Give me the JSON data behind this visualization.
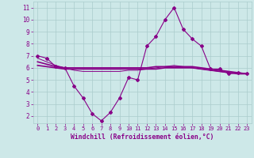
{
  "x": [
    0,
    1,
    2,
    3,
    4,
    5,
    6,
    7,
    8,
    9,
    10,
    11,
    12,
    13,
    14,
    15,
    16,
    17,
    18,
    19,
    20,
    21,
    22,
    23
  ],
  "line1": [
    7.0,
    6.8,
    6.1,
    6.0,
    4.5,
    3.5,
    2.2,
    1.6,
    2.3,
    3.5,
    5.2,
    5.0,
    7.8,
    8.6,
    10.0,
    11.0,
    9.2,
    8.4,
    7.8,
    5.9,
    5.9,
    5.5,
    5.6,
    5.5
  ],
  "line2": [
    6.5,
    6.3,
    6.1,
    6.0,
    6.0,
    6.0,
    6.0,
    6.0,
    6.0,
    6.0,
    6.0,
    6.0,
    6.0,
    6.1,
    6.1,
    6.1,
    6.1,
    6.1,
    6.0,
    5.9,
    5.8,
    5.7,
    5.6,
    5.5
  ],
  "line3": [
    6.2,
    6.1,
    6.0,
    5.9,
    5.9,
    5.9,
    5.9,
    5.9,
    5.9,
    5.9,
    5.9,
    5.9,
    5.9,
    5.9,
    6.0,
    6.0,
    6.0,
    6.0,
    5.9,
    5.8,
    5.7,
    5.6,
    5.5,
    5.5
  ],
  "line4": [
    6.8,
    6.5,
    6.2,
    6.0,
    5.8,
    5.7,
    5.7,
    5.7,
    5.7,
    5.7,
    5.8,
    5.8,
    5.9,
    6.0,
    6.1,
    6.2,
    6.1,
    6.0,
    5.9,
    5.8,
    5.7,
    5.6,
    5.6,
    5.5
  ],
  "bg_color": "#cde8e8",
  "line_color": "#880088",
  "grid_color": "#aacccc",
  "xlabel": "Windchill (Refroidissement éolien,°C)",
  "xlim_min": -0.5,
  "xlim_max": 23.5,
  "ylim_min": 1.4,
  "ylim_max": 11.5,
  "yticks": [
    2,
    3,
    4,
    5,
    6,
    7,
    8,
    9,
    10,
    11
  ],
  "xticks": [
    0,
    1,
    2,
    3,
    4,
    5,
    6,
    7,
    8,
    9,
    10,
    11,
    12,
    13,
    14,
    15,
    16,
    17,
    18,
    19,
    20,
    21,
    22,
    23
  ]
}
